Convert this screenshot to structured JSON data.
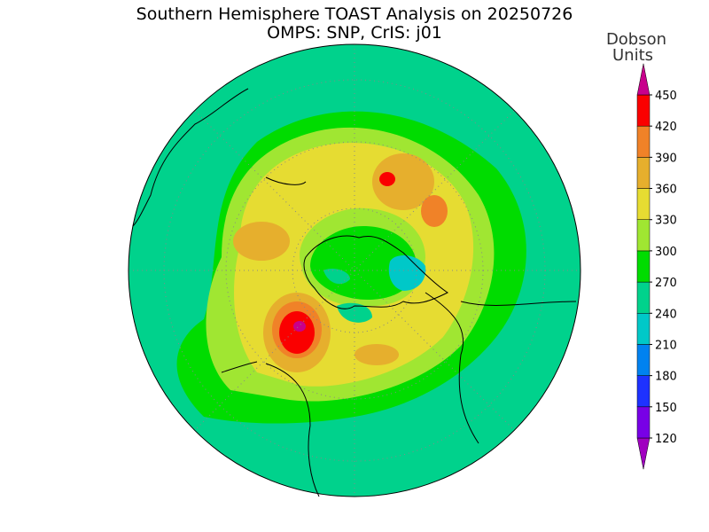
{
  "header": {
    "title": [
      "Southern Hemisphere TOAST Analysis on 20250726",
      "OMPS: SNP, CrIS: j01"
    ]
  },
  "colorbar": {
    "label": [
      "Dobson",
      "Units"
    ],
    "ticks": [
      120,
      150,
      180,
      210,
      240,
      270,
      300,
      330,
      360,
      390,
      420,
      450
    ],
    "colors": [
      "#a000c0",
      "#7800e6",
      "#1e32ff",
      "#0082f0",
      "#00c8c8",
      "#00d28c",
      "#00dc00",
      "#a0e632",
      "#e6dc32",
      "#e6af2d",
      "#f08228",
      "#fa0000",
      "#c8008c"
    ]
  }
}
